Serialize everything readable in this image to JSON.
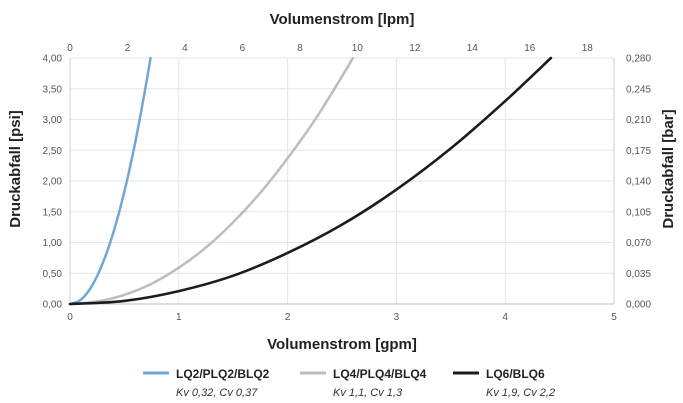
{
  "chart_data": {
    "type": "line",
    "xlabel_top": "Volumenstrom [lpm]",
    "xlabel_bottom": "Volumenstrom [gpm]",
    "ylabel_left": "Druckabfall [psi]",
    "ylabel_right": "Druckabfall [bar]",
    "xlim": [
      0,
      5
    ],
    "ylim": [
      0,
      4
    ],
    "xlim_top": [
      0,
      18.93
    ],
    "ylim_right": [
      0,
      0.28
    ],
    "x_ticks": [
      "0",
      "1",
      "2",
      "3",
      "4",
      "5"
    ],
    "x_top_ticks": [
      "0",
      "2",
      "4",
      "6",
      "8",
      "10",
      "12",
      "14",
      "16",
      "18"
    ],
    "y_ticks": [
      "0,00",
      "0,50",
      "1,00",
      "1,50",
      "2,00",
      "2,50",
      "3,00",
      "3,50",
      "4,00"
    ],
    "y_right_ticks": [
      "0,000",
      "0,035",
      "0,070",
      "0,105",
      "0,140",
      "0,175",
      "0,210",
      "0,245",
      "0,280"
    ],
    "grid": true,
    "legend_position": "bottom",
    "series": [
      {
        "name": "LQ2/PLQ2/BLQ2",
        "sub": "Kv 0,32, Cv 0,37",
        "color": "#6fa8d6",
        "x": [
          0,
          0.1,
          0.2,
          0.3,
          0.4,
          0.5,
          0.6,
          0.7,
          0.74
        ],
        "values": [
          0,
          0.07,
          0.29,
          0.66,
          1.17,
          1.83,
          2.63,
          3.58,
          4.0
        ]
      },
      {
        "name": "LQ4/PLQ4/BLQ4",
        "sub": "Kv 1,1, Cv 1,3",
        "color": "#bdbdbd",
        "x": [
          0,
          0.25,
          0.5,
          0.75,
          1,
          1.25,
          1.5,
          1.75,
          2,
          2.25,
          2.5,
          2.6
        ],
        "values": [
          0,
          0.04,
          0.15,
          0.33,
          0.59,
          0.92,
          1.33,
          1.81,
          2.37,
          2.99,
          3.7,
          4.0
        ]
      },
      {
        "name": "LQ6/BLQ6",
        "sub": "Kv 1,9, Cv 2,2",
        "color": "#1c1c1c",
        "x": [
          0,
          0.5,
          1,
          1.5,
          2,
          2.5,
          3,
          3.5,
          4,
          4.42
        ],
        "values": [
          0,
          0.05,
          0.21,
          0.46,
          0.83,
          1.29,
          1.86,
          2.53,
          3.3,
          4.0
        ]
      }
    ]
  }
}
